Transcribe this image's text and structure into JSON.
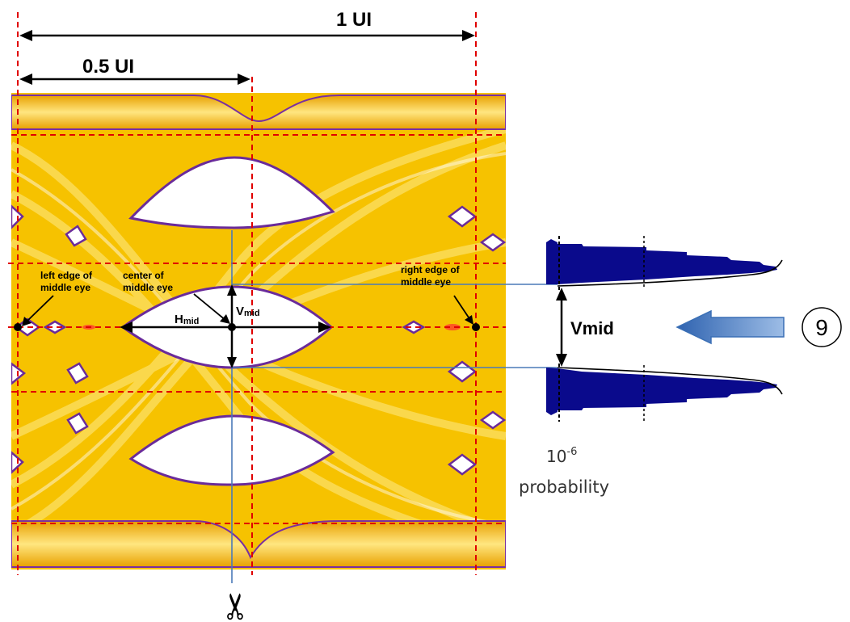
{
  "labels": {
    "one_ui": "1 UI",
    "half_ui": "0.5 UI",
    "left_edge_line1": "left edge of",
    "left_edge_line2": "middle eye",
    "center_line1": "center of",
    "center_line2": "middle eye",
    "right_edge_line1": "right edge of",
    "right_edge_line2": "middle eye",
    "h_main": "H",
    "h_sub": "mid",
    "v_main": "V",
    "v_sub": "mid",
    "vmid": "Vmid",
    "prob_base": "10",
    "prob_exp": "-6",
    "probability": "probability",
    "callout_number": "9",
    "cut_symbol": "✂"
  },
  "colors": {
    "eye_yellow": "#f5c400",
    "eye_light": "#fff4a8",
    "eye_edge": "#7a2fa0",
    "guide_red": "#e00000",
    "marker_blue": "#4a7ab8",
    "histogram_navy": "#0a0a8c",
    "arrow_blue": "#4f82c4"
  },
  "icons": {
    "cut_marker": "scissors-icon",
    "callout": "circled-number-icon"
  }
}
